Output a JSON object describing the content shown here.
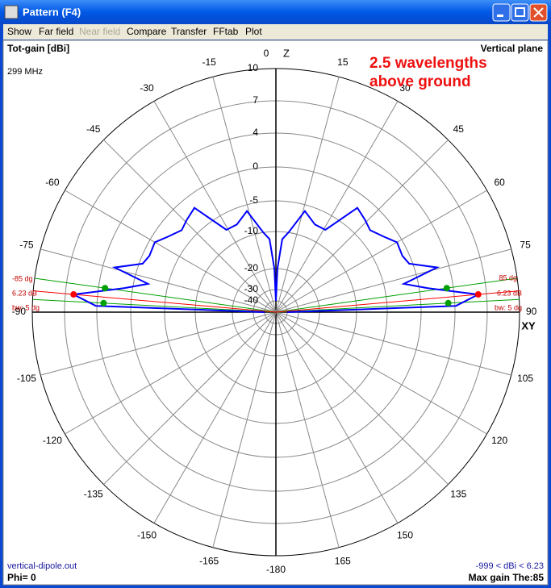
{
  "window": {
    "title": "Pattern   (F4)",
    "menu": [
      "Show",
      "Far field",
      "Near field",
      "Compare",
      "Transfer",
      "FFtab",
      "Plot"
    ]
  },
  "chart_data": {
    "type": "polar",
    "y_label": "Tot-gain [dBi]",
    "frequency": "299 MHz",
    "plane": "Vertical plane",
    "annotation": [
      "2.5 wavelengths",
      "above ground"
    ],
    "axis_up": "Z",
    "axis_right": "XY",
    "angle_ticks": [
      0,
      15,
      30,
      45,
      60,
      75,
      90,
      105,
      120,
      135,
      150,
      165,
      -180,
      -165,
      -150,
      -135,
      -120,
      -105,
      -90,
      -75,
      -60,
      -45,
      -30,
      -15
    ],
    "rticks": [
      10,
      7,
      4,
      0,
      -5,
      -10,
      -20,
      -30,
      -40
    ],
    "pattern": {
      "color": "#0000ff",
      "x": [
        -90,
        -88,
        -85,
        -81,
        -77.5,
        -74.5,
        -70,
        -66,
        -60,
        -55,
        -49,
        -44,
        -38,
        -31,
        -24,
        -16,
        -9,
        -5,
        -2,
        0,
        2,
        5,
        9,
        16,
        24,
        31,
        38,
        44,
        49,
        55,
        60,
        66,
        70,
        74.5,
        77.5,
        81,
        85,
        88,
        90
      ],
      "values": [
        -40,
        4.1,
        6.23,
        1,
        -2.1,
        2.6,
        -0.5,
        -1,
        -0.8,
        -2,
        -3,
        -2.5,
        -1.9,
        -7.5,
        -7.5,
        -6,
        -10,
        -12,
        -20,
        -40,
        -20,
        -12,
        -10,
        -6,
        -7.5,
        -7.5,
        -1.9,
        -2.5,
        -3,
        -2,
        -0.8,
        -1,
        -0.5,
        2.6,
        -2.1,
        1,
        6.23,
        4.1,
        -40
      ]
    },
    "max_gain": {
      "theta": 85,
      "gain": 6.23,
      "color": "#ff0000",
      "labels": {
        "left_angle": "-85 dg",
        "right_angle": "85 dg",
        "gain": "6.23 dB",
        "bw": "bw: 5 dg"
      }
    },
    "beamwidth": {
      "thetas": [
        82,
        87
      ],
      "gain": 3.23,
      "color": "#00a000"
    },
    "file": "vertical-dipole.out",
    "phi": "Phi= 0",
    "range_text": "-999 < dBi < 6.23",
    "max_text": "Max gain The:85"
  }
}
